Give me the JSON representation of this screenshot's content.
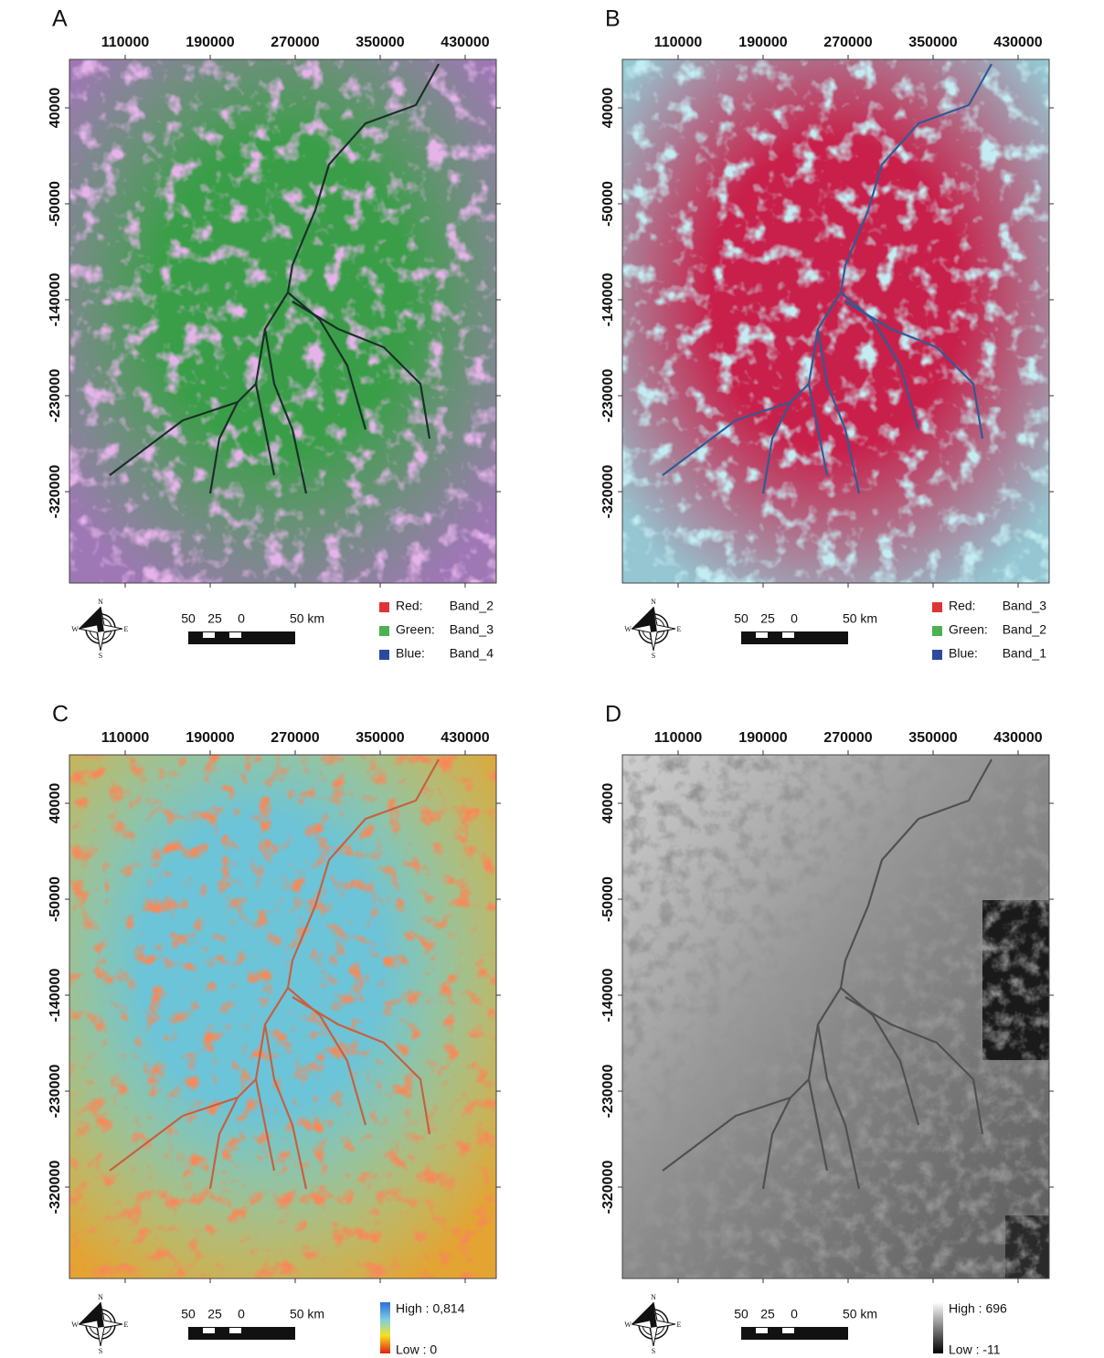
{
  "panels": [
    {
      "label": "A",
      "x_ticks": [
        "110000",
        "190000",
        "270000",
        "350000",
        "430000"
      ],
      "y_ticks": [
        "40000",
        "-50000",
        "-140000",
        "-230000",
        "-320000"
      ],
      "compass": {
        "n": "N",
        "s": "S",
        "e": "E",
        "w": "W"
      },
      "scale": [
        "50",
        "25",
        "0",
        "50 km"
      ],
      "legend": [
        {
          "channel": "Red:",
          "band": "Band_2"
        },
        {
          "channel": "Green:",
          "band": "Band_3"
        },
        {
          "channel": "Blue:",
          "band": "Band_4"
        }
      ]
    },
    {
      "label": "B",
      "x_ticks": [
        "110000",
        "190000",
        "270000",
        "350000",
        "430000"
      ],
      "y_ticks": [
        "40000",
        "-50000",
        "-140000",
        "-230000",
        "-320000"
      ],
      "compass": {
        "n": "N",
        "s": "S",
        "e": "E",
        "w": "W"
      },
      "scale": [
        "50",
        "25",
        "0",
        "50 km"
      ],
      "legend": [
        {
          "channel": "Red:",
          "band": "Band_3"
        },
        {
          "channel": "Green:",
          "band": "Band_2"
        },
        {
          "channel": "Blue:",
          "band": "Band_1"
        }
      ]
    },
    {
      "label": "C",
      "x_ticks": [
        "110000",
        "190000",
        "270000",
        "350000",
        "430000"
      ],
      "y_ticks": [
        "40000",
        "-50000",
        "-140000",
        "-230000",
        "-320000"
      ],
      "compass": {
        "n": "N",
        "s": "S",
        "e": "E",
        "w": "W"
      },
      "scale": [
        "50",
        "25",
        "0",
        "50 km"
      ],
      "ramp": {
        "high": "High : 0,814",
        "low": "Low : 0"
      }
    },
    {
      "label": "D",
      "x_ticks": [
        "110000",
        "190000",
        "270000",
        "350000",
        "430000"
      ],
      "y_ticks": [
        "40000",
        "-50000",
        "-140000",
        "-230000",
        "-320000"
      ],
      "compass": {
        "n": "N",
        "s": "S",
        "e": "E",
        "w": "W"
      },
      "scale": [
        "50",
        "25",
        "0",
        "50 km"
      ],
      "ramp": {
        "high": "High : 696",
        "low": "Low : -11"
      }
    }
  ]
}
